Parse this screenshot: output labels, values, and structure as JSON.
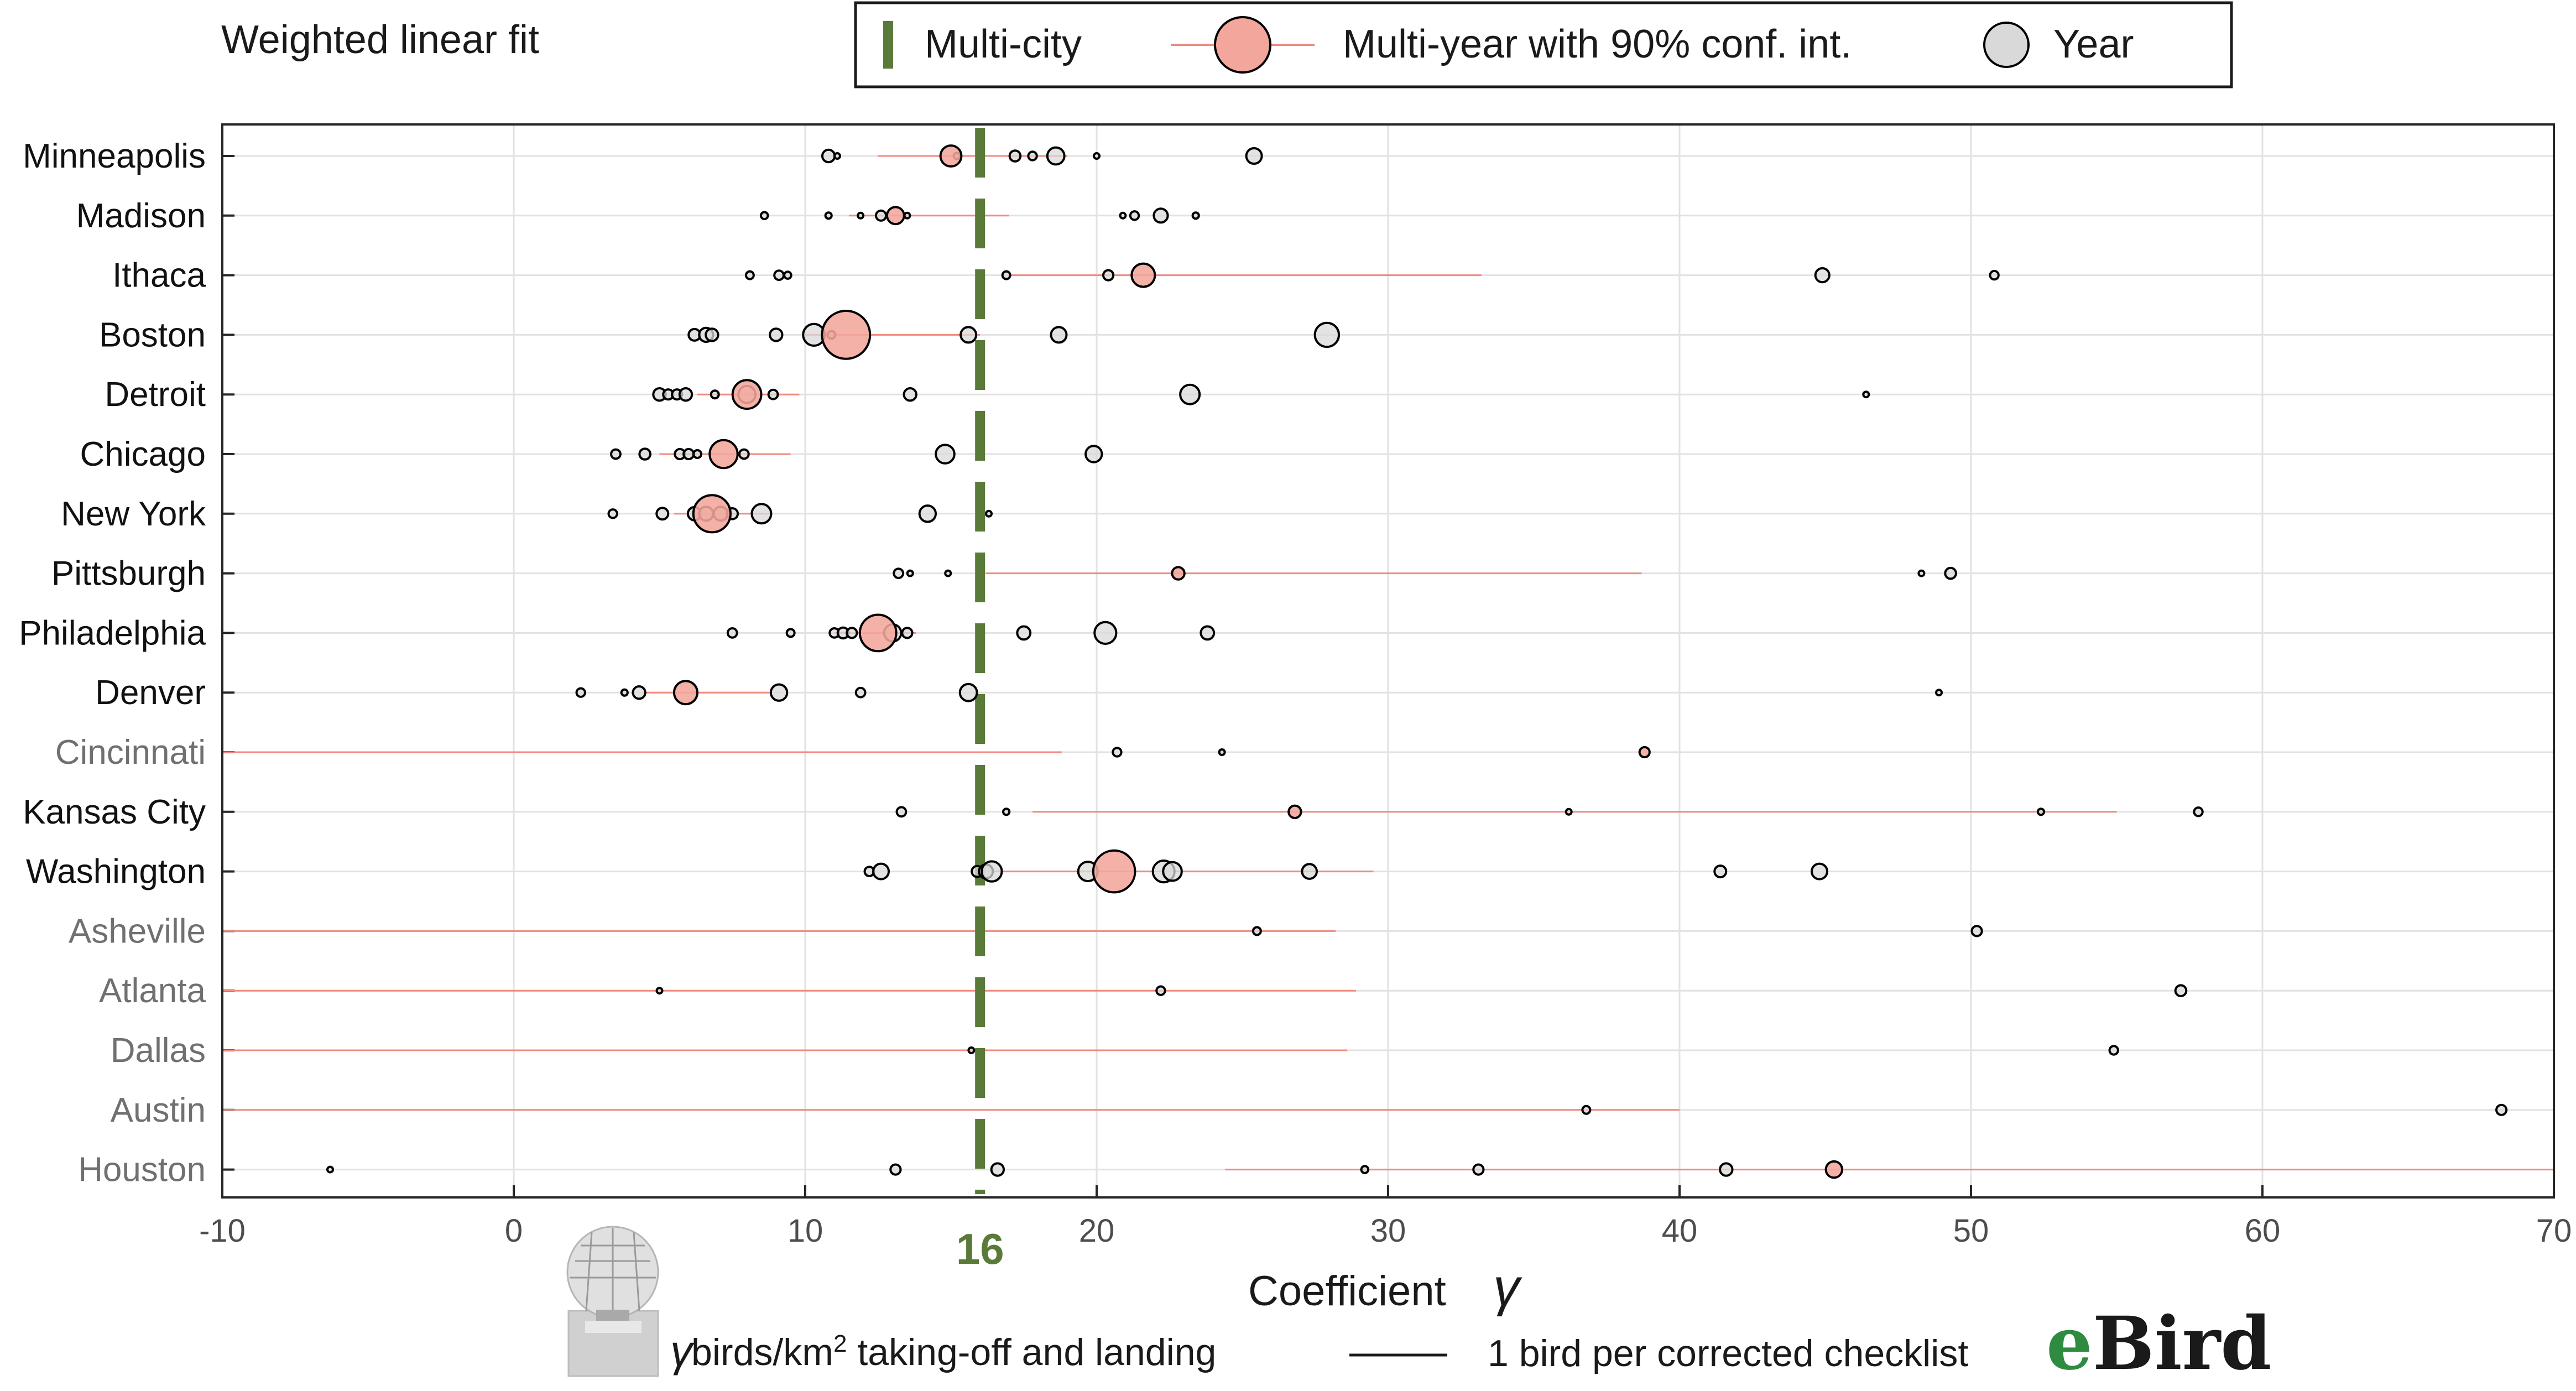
{
  "chart_data": {
    "type": "scatter",
    "title": "Weighted linear fit",
    "xlabel": "Coefficient",
    "xlabel_symbol": "γ",
    "xlim": [
      -10,
      70
    ],
    "xticks": [
      -10,
      0,
      10,
      20,
      30,
      40,
      50,
      60,
      70
    ],
    "grid": true,
    "legend": {
      "placement": "top",
      "entries": [
        {
          "key": "multi_city",
          "label": "Multi-city"
        },
        {
          "key": "multi_year",
          "label": "Multi-year with 90% conf. int."
        },
        {
          "key": "year",
          "label": "Year"
        }
      ]
    },
    "multi_city_value": 16,
    "multi_city_label": "16",
    "colors": {
      "multi_city": "#5a7a3a",
      "multi_year_fill": "#f3a69c",
      "ci_line": "#f08a80",
      "year_fill": "#d9d9d9",
      "edge": "#000000",
      "grid": "#e2e2e2",
      "muted_city": "#707070"
    },
    "cities": [
      {
        "name": "Minneapolis",
        "muted": false,
        "ci": [
          12.5,
          19.0
        ],
        "multi_year": {
          "x": 15.0,
          "size": 0.27
        },
        "years": [
          {
            "x": 10.8,
            "size": 0.16
          },
          {
            "x": 11.1,
            "size": 0.06
          },
          {
            "x": 15.2,
            "size": 0.08
          },
          {
            "x": 17.2,
            "size": 0.14
          },
          {
            "x": 17.8,
            "size": 0.11
          },
          {
            "x": 18.6,
            "size": 0.22
          },
          {
            "x": 20.0,
            "size": 0.06
          },
          {
            "x": 25.4,
            "size": 0.2
          }
        ]
      },
      {
        "name": "Madison",
        "muted": false,
        "ci": [
          11.5,
          17.0
        ],
        "multi_year": {
          "x": 13.1,
          "size": 0.22
        },
        "years": [
          {
            "x": 8.6,
            "size": 0.09
          },
          {
            "x": 10.8,
            "size": 0.08
          },
          {
            "x": 11.9,
            "size": 0.07
          },
          {
            "x": 12.6,
            "size": 0.13
          },
          {
            "x": 13.5,
            "size": 0.07
          },
          {
            "x": 20.9,
            "size": 0.07
          },
          {
            "x": 21.3,
            "size": 0.11
          },
          {
            "x": 22.2,
            "size": 0.18
          },
          {
            "x": 23.4,
            "size": 0.08
          }
        ]
      },
      {
        "name": "Ithaca",
        "muted": false,
        "ci": [
          17.0,
          33.2
        ],
        "multi_year": {
          "x": 21.6,
          "size": 0.3
        },
        "years": [
          {
            "x": 8.1,
            "size": 0.1
          },
          {
            "x": 9.1,
            "size": 0.12
          },
          {
            "x": 9.4,
            "size": 0.09
          },
          {
            "x": 16.9,
            "size": 0.1
          },
          {
            "x": 20.4,
            "size": 0.13
          },
          {
            "x": 44.9,
            "size": 0.18
          },
          {
            "x": 50.8,
            "size": 0.11
          }
        ]
      },
      {
        "name": "Boston",
        "muted": false,
        "ci": [
          10.0,
          16.0
        ],
        "multi_year": {
          "x": 11.4,
          "size": 0.62
        },
        "years": [
          {
            "x": 6.2,
            "size": 0.15
          },
          {
            "x": 6.6,
            "size": 0.18
          },
          {
            "x": 6.8,
            "size": 0.16
          },
          {
            "x": 9.0,
            "size": 0.16
          },
          {
            "x": 10.3,
            "size": 0.28
          },
          {
            "x": 10.9,
            "size": 0.1
          },
          {
            "x": 15.6,
            "size": 0.2
          },
          {
            "x": 18.7,
            "size": 0.2
          },
          {
            "x": 27.9,
            "size": 0.31
          }
        ]
      },
      {
        "name": "Detroit",
        "muted": false,
        "ci": [
          6.3,
          9.8
        ],
        "multi_year": {
          "x": 8.0,
          "size": 0.37
        },
        "years": [
          {
            "x": 5.0,
            "size": 0.16
          },
          {
            "x": 5.3,
            "size": 0.13
          },
          {
            "x": 5.6,
            "size": 0.13
          },
          {
            "x": 5.9,
            "size": 0.16
          },
          {
            "x": 6.9,
            "size": 0.1
          },
          {
            "x": 8.0,
            "size": 0.22
          },
          {
            "x": 8.9,
            "size": 0.12
          },
          {
            "x": 13.6,
            "size": 0.16
          },
          {
            "x": 23.2,
            "size": 0.25
          },
          {
            "x": 46.4,
            "size": 0.07
          }
        ]
      },
      {
        "name": "Chicago",
        "muted": false,
        "ci": [
          5.0,
          9.5
        ],
        "multi_year": {
          "x": 7.2,
          "size": 0.36
        },
        "years": [
          {
            "x": 3.5,
            "size": 0.12
          },
          {
            "x": 4.5,
            "size": 0.14
          },
          {
            "x": 5.7,
            "size": 0.13
          },
          {
            "x": 6.0,
            "size": 0.13
          },
          {
            "x": 6.3,
            "size": 0.1
          },
          {
            "x": 7.9,
            "size": 0.12
          },
          {
            "x": 14.8,
            "size": 0.24
          },
          {
            "x": 19.9,
            "size": 0.21
          }
        ]
      },
      {
        "name": "New York",
        "muted": false,
        "ci": [
          5.5,
          8.8
        ],
        "multi_year": {
          "x": 6.8,
          "size": 0.48
        },
        "years": [
          {
            "x": 3.4,
            "size": 0.11
          },
          {
            "x": 5.1,
            "size": 0.15
          },
          {
            "x": 6.2,
            "size": 0.17
          },
          {
            "x": 6.6,
            "size": 0.18
          },
          {
            "x": 7.1,
            "size": 0.18
          },
          {
            "x": 7.5,
            "size": 0.14
          },
          {
            "x": 8.5,
            "size": 0.25
          },
          {
            "x": 14.2,
            "size": 0.21
          },
          {
            "x": 16.3,
            "size": 0.05
          }
        ]
      },
      {
        "name": "Pittsburgh",
        "muted": false,
        "ci": [
          16.2,
          38.7
        ],
        "multi_year": {
          "x": 22.8,
          "size": 0.16
        },
        "years": [
          {
            "x": 13.2,
            "size": 0.12
          },
          {
            "x": 13.6,
            "size": 0.04
          },
          {
            "x": 14.9,
            "size": 0.07
          },
          {
            "x": 48.3,
            "size": 0.04
          },
          {
            "x": 49.3,
            "size": 0.14
          }
        ]
      },
      {
        "name": "Philadelphia",
        "muted": false,
        "ci": [
          11.0,
          13.8
        ],
        "multi_year": {
          "x": 12.5,
          "size": 0.47
        },
        "years": [
          {
            "x": 7.5,
            "size": 0.12
          },
          {
            "x": 9.5,
            "size": 0.1
          },
          {
            "x": 11.0,
            "size": 0.12
          },
          {
            "x": 11.3,
            "size": 0.14
          },
          {
            "x": 11.6,
            "size": 0.13
          },
          {
            "x": 13.0,
            "size": 0.22
          },
          {
            "x": 13.5,
            "size": 0.13
          },
          {
            "x": 17.5,
            "size": 0.17
          },
          {
            "x": 20.3,
            "size": 0.28
          },
          {
            "x": 23.8,
            "size": 0.17
          }
        ]
      },
      {
        "name": "Denver",
        "muted": false,
        "ci": [
          4.5,
          8.8
        ],
        "multi_year": {
          "x": 5.9,
          "size": 0.3
        },
        "years": [
          {
            "x": 2.3,
            "size": 0.11
          },
          {
            "x": 3.8,
            "size": 0.08
          },
          {
            "x": 4.3,
            "size": 0.16
          },
          {
            "x": 9.1,
            "size": 0.21
          },
          {
            "x": 11.9,
            "size": 0.12
          },
          {
            "x": 15.6,
            "size": 0.22
          },
          {
            "x": 48.9,
            "size": 0.07
          }
        ]
      },
      {
        "name": "Cincinnati",
        "muted": true,
        "ci": [
          -10,
          18.8
        ],
        "multi_year": {
          "x": 38.8,
          "size": 0.13
        },
        "years": [
          {
            "x": 20.7,
            "size": 0.11
          },
          {
            "x": 24.3,
            "size": 0.07
          }
        ]
      },
      {
        "name": "Kansas City",
        "muted": false,
        "ci": [
          17.8,
          55.0
        ],
        "multi_year": {
          "x": 26.8,
          "size": 0.16
        },
        "years": [
          {
            "x": 13.3,
            "size": 0.12
          },
          {
            "x": 16.9,
            "size": 0.08
          },
          {
            "x": 36.2,
            "size": 0.03
          },
          {
            "x": 52.4,
            "size": 0.08
          },
          {
            "x": 57.8,
            "size": 0.11
          }
        ]
      },
      {
        "name": "Washington",
        "muted": false,
        "ci": [
          16.0,
          29.5
        ],
        "multi_year": {
          "x": 20.6,
          "size": 0.54
        },
        "years": [
          {
            "x": 12.2,
            "size": 0.12
          },
          {
            "x": 12.6,
            "size": 0.2
          },
          {
            "x": 15.9,
            "size": 0.14
          },
          {
            "x": 16.2,
            "size": 0.18
          },
          {
            "x": 16.4,
            "size": 0.26
          },
          {
            "x": 19.7,
            "size": 0.25
          },
          {
            "x": 22.3,
            "size": 0.28
          },
          {
            "x": 22.6,
            "size": 0.24
          },
          {
            "x": 27.3,
            "size": 0.19
          },
          {
            "x": 41.4,
            "size": 0.15
          },
          {
            "x": 44.8,
            "size": 0.2
          }
        ]
      },
      {
        "name": "Asheville",
        "muted": true,
        "ci": [
          -10,
          28.2
        ],
        "multi_year": null,
        "years": [
          {
            "x": 25.5,
            "size": 0.1
          },
          {
            "x": 50.2,
            "size": 0.13
          }
        ]
      },
      {
        "name": "Atlanta",
        "muted": true,
        "ci": [
          -10,
          28.9
        ],
        "multi_year": null,
        "years": [
          {
            "x": 5.0,
            "size": 0.04
          },
          {
            "x": 22.2,
            "size": 0.11
          },
          {
            "x": 57.2,
            "size": 0.14
          }
        ]
      },
      {
        "name": "Dallas",
        "muted": true,
        "ci": [
          -10,
          28.6
        ],
        "multi_year": null,
        "years": [
          {
            "x": 15.7,
            "size": 0.06
          },
          {
            "x": 54.9,
            "size": 0.11
          }
        ]
      },
      {
        "name": "Austin",
        "muted": true,
        "ci": [
          -10,
          40.0
        ],
        "multi_year": null,
        "years": [
          {
            "x": 36.8,
            "size": 0.1
          },
          {
            "x": 68.2,
            "size": 0.13
          }
        ]
      },
      {
        "name": "Houston",
        "muted": true,
        "ci": [
          24.4,
          70
        ],
        "multi_year": {
          "x": 45.3,
          "size": 0.21
        },
        "years": [
          {
            "x": -6.3,
            "size": 0.07
          },
          {
            "x": 13.1,
            "size": 0.13
          },
          {
            "x": 16.6,
            "size": 0.16
          },
          {
            "x": 29.2,
            "size": 0.09
          },
          {
            "x": 33.1,
            "size": 0.13
          },
          {
            "x": 41.6,
            "size": 0.16
          }
        ]
      }
    ]
  },
  "footer": {
    "gamma_symbol": "γ",
    "birds_label_a": " birds/km",
    "birds_sup": "2",
    "birds_label_b": " taking-off and landing",
    "line_legend": "1 bird per corrected checklist",
    "ebird_logo_e": "e",
    "ebird_logo_rest": "Bird",
    "radar_icon": "radar-dome-icon"
  }
}
